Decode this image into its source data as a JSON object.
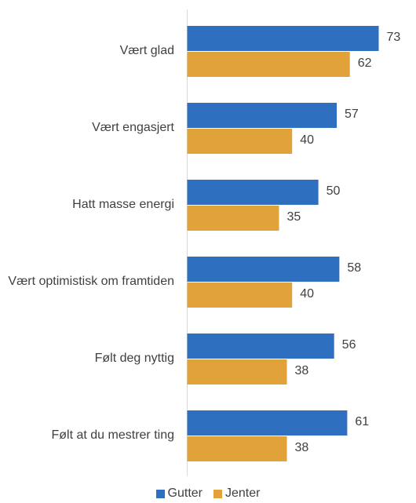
{
  "chart_data": {
    "type": "barh",
    "categories": [
      "Vært glad",
      "Vært engasjert",
      "Hatt masse energi",
      "Vært optimistisk om framtiden",
      "Følt deg nyttig",
      "Følt at du mestrer ting"
    ],
    "series": [
      {
        "name": "Gutter",
        "color": "#2f6fbf",
        "values": [
          73,
          57,
          50,
          58,
          56,
          61
        ]
      },
      {
        "name": "Jenter",
        "color": "#e2a23a",
        "values": [
          62,
          40,
          35,
          40,
          38,
          38
        ]
      }
    ]
  }
}
